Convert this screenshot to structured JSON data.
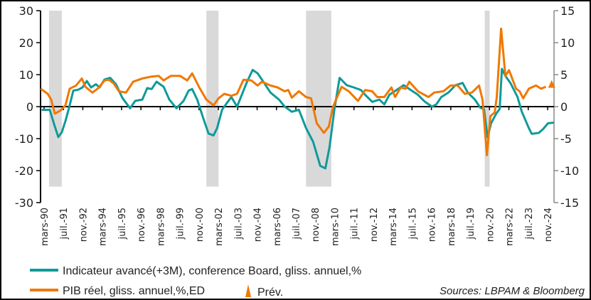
{
  "chart_data": {
    "type": "line",
    "left_axis": {
      "ylim": [
        -30,
        30
      ],
      "ticks": [
        30,
        20,
        10,
        0,
        -10,
        -20,
        -30
      ]
    },
    "right_axis": {
      "ylim": [
        -15,
        15
      ],
      "ticks": [
        15,
        10,
        5,
        0,
        -5,
        -10,
        -15
      ]
    },
    "x_tick_labels": [
      "mars-90",
      "juil.-91",
      "nov.-92",
      "mars-94",
      "juil.-95",
      "nov.-96",
      "mars-98",
      "juil.-99",
      "nov.-00",
      "mars-02",
      "juil.-03",
      "nov.-04",
      "mars-06",
      "juil.-07",
      "nov.-08",
      "mars-10",
      "juil.-11",
      "nov.-12",
      "mars-14",
      "juil.-15",
      "nov.-16",
      "mars-18",
      "juil.-19",
      "nov.-20",
      "mars-22",
      "juil.-23",
      "nov.-24"
    ],
    "x_range": [
      1990.17,
      2024.83
    ],
    "recessions": [
      [
        1990.51,
        1991.39
      ],
      [
        2001.34,
        2002.18
      ],
      [
        2008.2,
        2009.94
      ],
      [
        2020.5,
        2020.84
      ]
    ],
    "colors": {
      "indicator": "#0f9a9a",
      "gdp": "#f07800",
      "recession": "#d9d9d9"
    },
    "series": [
      {
        "name": "Indicateur avancé(+3M), conference Board, gliss. annuel,%",
        "axis": "left",
        "points": [
          [
            1990.0,
            -1
          ],
          [
            1990.56,
            -1
          ],
          [
            1990.86,
            -5.5
          ],
          [
            1991.15,
            -9.5
          ],
          [
            1991.39,
            -8
          ],
          [
            1991.64,
            -4.5
          ],
          [
            1991.88,
            -0.5
          ],
          [
            1992.18,
            5
          ],
          [
            1992.52,
            5.3
          ],
          [
            1992.81,
            6
          ],
          [
            1993.11,
            8
          ],
          [
            1993.4,
            6
          ],
          [
            1993.74,
            7
          ],
          [
            1993.99,
            6
          ],
          [
            1994.33,
            8.5
          ],
          [
            1994.72,
            9
          ],
          [
            1995.12,
            7
          ],
          [
            1995.56,
            2.7
          ],
          [
            1996.09,
            -0.5
          ],
          [
            1996.44,
            1.8
          ],
          [
            1996.93,
            2.2
          ],
          [
            1997.27,
            5.8
          ],
          [
            1997.57,
            5.5
          ],
          [
            1997.91,
            7.8
          ],
          [
            1998.4,
            6.2
          ],
          [
            1998.79,
            2.2
          ],
          [
            1999.28,
            -0.5
          ],
          [
            1999.77,
            1.8
          ],
          [
            2000.12,
            5
          ],
          [
            2000.36,
            5.5
          ],
          [
            2000.71,
            2.2
          ],
          [
            2001.1,
            -3.3
          ],
          [
            2001.49,
            -8.4
          ],
          [
            2001.83,
            -9
          ],
          [
            2002.08,
            -6.7
          ],
          [
            2002.42,
            -1
          ],
          [
            2002.81,
            1.5
          ],
          [
            2003.06,
            3
          ],
          [
            2003.45,
            0
          ],
          [
            2003.79,
            3.8
          ],
          [
            2004.14,
            7.8
          ],
          [
            2004.53,
            11.5
          ],
          [
            2004.87,
            10.4
          ],
          [
            2005.26,
            7.8
          ],
          [
            2005.75,
            4.4
          ],
          [
            2006.34,
            2.2
          ],
          [
            2006.73,
            0
          ],
          [
            2007.22,
            -1.6
          ],
          [
            2007.71,
            -1
          ],
          [
            2008.2,
            -6.7
          ],
          [
            2008.69,
            -11
          ],
          [
            2009.18,
            -18.5
          ],
          [
            2009.53,
            -19.3
          ],
          [
            2009.82,
            -12.6
          ],
          [
            2010.16,
            -0.7
          ],
          [
            2010.51,
            9
          ],
          [
            2011.0,
            6.7
          ],
          [
            2011.49,
            6
          ],
          [
            2011.98,
            5.2
          ],
          [
            2012.27,
            3.7
          ],
          [
            2012.76,
            1.5
          ],
          [
            2013.25,
            2.2
          ],
          [
            2013.59,
            0.7
          ],
          [
            2013.94,
            3.7
          ],
          [
            2014.43,
            5.2
          ],
          [
            2014.92,
            6.7
          ],
          [
            2015.41,
            5.2
          ],
          [
            2015.9,
            3.7
          ],
          [
            2016.39,
            1.5
          ],
          [
            2016.88,
            0
          ],
          [
            2017.17,
            0.7
          ],
          [
            2017.51,
            3
          ],
          [
            2018.0,
            4.4
          ],
          [
            2018.49,
            6.7
          ],
          [
            2018.98,
            7.4
          ],
          [
            2019.33,
            4.4
          ],
          [
            2019.82,
            2.2
          ],
          [
            2020.21,
            -0.4
          ],
          [
            2020.45,
            -0.7
          ],
          [
            2020.7,
            -9.6
          ],
          [
            2020.94,
            -5.2
          ],
          [
            2021.29,
            -2.2
          ],
          [
            2021.53,
            -0.7
          ],
          [
            2021.68,
            11.8
          ],
          [
            2021.92,
            9.6
          ],
          [
            2022.27,
            7.4
          ],
          [
            2022.76,
            3
          ],
          [
            2023.05,
            -1.5
          ],
          [
            2023.54,
            -6.7
          ],
          [
            2023.74,
            -8.5
          ],
          [
            2024.23,
            -8.2
          ],
          [
            2024.52,
            -7
          ],
          [
            2024.86,
            -5.2
          ],
          [
            2025.25,
            -5
          ]
        ]
      },
      {
        "name": "PIB réel, gliss. annuel,%,ED",
        "axis": "right",
        "points": [
          [
            1989.93,
            2.8
          ],
          [
            1990.42,
            2.0
          ],
          [
            1990.66,
            1.1
          ],
          [
            1990.91,
            -1.1
          ],
          [
            1991.3,
            -0.6
          ],
          [
            1991.64,
            0.2
          ],
          [
            1991.93,
            2.8
          ],
          [
            1992.37,
            3.3
          ],
          [
            1992.77,
            4.4
          ],
          [
            1993.01,
            3.1
          ],
          [
            1993.5,
            2.2
          ],
          [
            1993.85,
            2.8
          ],
          [
            1994.34,
            4.1
          ],
          [
            1994.63,
            4.2
          ],
          [
            1994.97,
            3.6
          ],
          [
            1995.32,
            2.4
          ],
          [
            1995.81,
            2.2
          ],
          [
            1996.3,
            3.9
          ],
          [
            1996.93,
            4.4
          ],
          [
            1997.57,
            4.7
          ],
          [
            1998.06,
            4.8
          ],
          [
            1998.4,
            4.1
          ],
          [
            1998.89,
            4.8
          ],
          [
            1999.53,
            4.8
          ],
          [
            2000.02,
            4.1
          ],
          [
            2000.36,
            5.2
          ],
          [
            2000.85,
            3.0
          ],
          [
            2001.34,
            1.1
          ],
          [
            2001.83,
            0.2
          ],
          [
            2002.18,
            1.3
          ],
          [
            2002.57,
            2.0
          ],
          [
            2003.06,
            1.7
          ],
          [
            2003.45,
            2.0
          ],
          [
            2003.89,
            4.2
          ],
          [
            2004.43,
            4.1
          ],
          [
            2004.87,
            3.3
          ],
          [
            2005.16,
            3.9
          ],
          [
            2005.75,
            3.3
          ],
          [
            2006.24,
            3.0
          ],
          [
            2006.73,
            2.4
          ],
          [
            2006.98,
            2.6
          ],
          [
            2007.22,
            1.4
          ],
          [
            2007.71,
            2.4
          ],
          [
            2008.2,
            1.5
          ],
          [
            2008.55,
            1.3
          ],
          [
            2008.94,
            -2.6
          ],
          [
            2009.43,
            -4.1
          ],
          [
            2009.77,
            -3.1
          ],
          [
            2010.06,
            0
          ],
          [
            2010.65,
            3.1
          ],
          [
            2011.14,
            2.4
          ],
          [
            2011.78,
            0.9
          ],
          [
            2012.27,
            2.6
          ],
          [
            2012.76,
            2.4
          ],
          [
            2013.1,
            1.5
          ],
          [
            2013.59,
            1.5
          ],
          [
            2014.08,
            3.0
          ],
          [
            2014.33,
            1.5
          ],
          [
            2014.72,
            3.0
          ],
          [
            2015.06,
            2.8
          ],
          [
            2015.31,
            3.9
          ],
          [
            2015.9,
            2.4
          ],
          [
            2016.63,
            1.5
          ],
          [
            2017.02,
            2.2
          ],
          [
            2017.66,
            2.4
          ],
          [
            2018.15,
            3.3
          ],
          [
            2018.64,
            3.3
          ],
          [
            2019.13,
            2.0
          ],
          [
            2019.62,
            2.2
          ],
          [
            2020.11,
            3.3
          ],
          [
            2020.35,
            1.1
          ],
          [
            2020.65,
            -7.6
          ],
          [
            2020.89,
            -1.5
          ],
          [
            2021.19,
            -0.9
          ],
          [
            2021.33,
            1.5
          ],
          [
            2021.63,
            12.2
          ],
          [
            2021.92,
            4.8
          ],
          [
            2022.17,
            5.7
          ],
          [
            2022.66,
            2.8
          ],
          [
            2022.9,
            2.4
          ],
          [
            2023.15,
            1.3
          ],
          [
            2023.54,
            2.8
          ],
          [
            2024.03,
            3.3
          ],
          [
            2024.37,
            2.8
          ],
          [
            2024.71,
            3.1
          ]
        ]
      }
    ],
    "forecast": {
      "name": "Prév.",
      "date": 2025.11,
      "value": 3.5,
      "axis": "right"
    },
    "source": "Sources: LBPAM & Bloomberg"
  }
}
